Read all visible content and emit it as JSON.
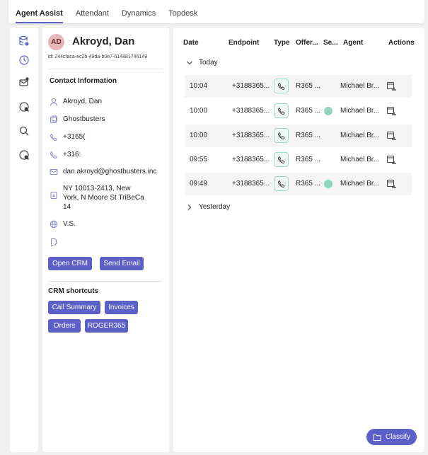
{
  "tabs": [
    {
      "label": "Agent Assist",
      "active": true
    },
    {
      "label": "Attendant"
    },
    {
      "label": "Dynamics"
    },
    {
      "label": "Topdesk"
    }
  ],
  "rail": [
    "database-icon",
    "history-icon",
    "mail-notification-icon",
    "chat-history-icon",
    "search-icon",
    "chat-settings-icon"
  ],
  "contact": {
    "initials": "AD",
    "name": "Akroyd, Dan",
    "id": "id:  244cfaca-ec2b-49da-b0e7-614881746149",
    "section_title": "Contact Information",
    "name_value": "Akroyd, Dan",
    "company": "Ghostbusters",
    "phone1": "+3165(",
    "phone2": "+316:",
    "email": "dan.akroyd@ghostbusters.inc",
    "address": "NY 10013-2413, New\nYork, N Moore St TriBeCa\n14",
    "website": "V.S.",
    "open_crm_label": "Open CRM",
    "send_email_label": "Send Email",
    "shortcuts_title": "CRM shortcuts",
    "shortcuts": [
      "Call Summary",
      "Invoices",
      "Orders",
      "ROGER365"
    ]
  },
  "table": {
    "headers": {
      "date": "Date",
      "endpoint": "Endpoint",
      "type": "Type",
      "offer": "Offer...",
      "sentiment": "Se...",
      "agent": "Agent",
      "actions": "Actions"
    },
    "group_today": "Today",
    "group_yesterday": "Yesterday",
    "rows": [
      {
        "time": "10:04",
        "endpoint": "+3188365...",
        "offer": "R365 ...",
        "sentiment": false,
        "agent": "Michael Br..."
      },
      {
        "time": "10:00",
        "endpoint": "+3188365...",
        "offer": "R365 ...",
        "sentiment": true,
        "agent": "Michael Br..."
      },
      {
        "time": "10:00",
        "endpoint": "+3188365...",
        "offer": "R365 ...",
        "sentiment": false,
        "agent": "Michael Br..."
      },
      {
        "time": "09:55",
        "endpoint": "+3188365...",
        "offer": "R365 ...",
        "sentiment": false,
        "agent": "Michael Br..."
      },
      {
        "time": "09:49",
        "endpoint": "+3188365...",
        "offer": "R365 ...",
        "sentiment": true,
        "agent": "Michael Br..."
      }
    ]
  },
  "classify_label": "Classify",
  "colors": {
    "accent": "#5b5fc7",
    "sentiment": "#8fd6bc"
  }
}
